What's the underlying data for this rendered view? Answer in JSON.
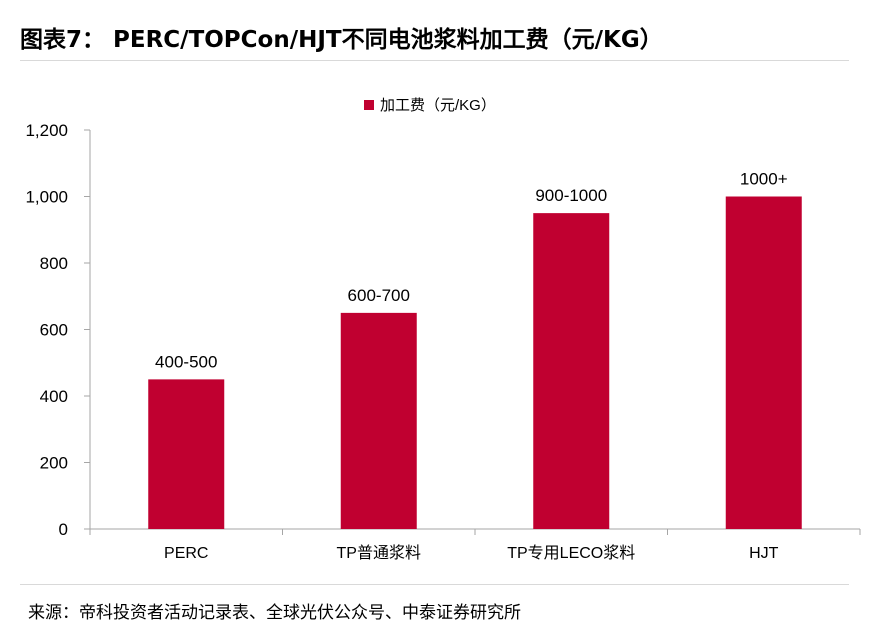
{
  "figure": {
    "title": "图表7： PERC/TOPCon/HJT不同电池浆料加工费（元/KG）",
    "source": "来源：帝科投资者活动记录表、全球光伏公众号、中泰证券研究所"
  },
  "chart_data": {
    "type": "bar",
    "categories": [
      "PERC",
      "TP普通浆料",
      "TP专用LECO浆料",
      "HJT"
    ],
    "series": [
      {
        "name": "加工费（元/KG）",
        "values": [
          450,
          650,
          950,
          1000
        ],
        "data_labels": [
          "400-500",
          "600-700",
          "900-1000",
          "1000+"
        ]
      }
    ],
    "yticks": [
      "0",
      "200",
      "400",
      "600",
      "800",
      "1,000",
      "1,200"
    ],
    "ylim": [
      0,
      1200
    ],
    "grid": false,
    "legend": "top-center",
    "colors": {
      "bar": "#c00030",
      "axis": "#a6a6a6"
    }
  }
}
